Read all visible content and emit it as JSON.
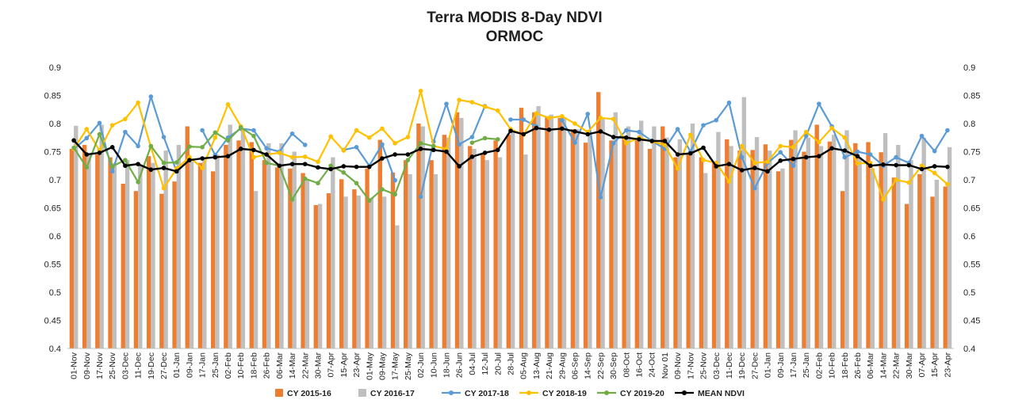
{
  "chart_data": {
    "type": "bar+line",
    "title": "Terra MODIS 8-Day  NDVI",
    "subtitle": "ORMOC",
    "xlabel": "",
    "ylabel": "",
    "ylim": [
      0.4,
      0.9
    ],
    "y_ticks": [
      "0.4",
      "0.45",
      "0.5",
      "0.55",
      "0.6",
      "0.65",
      "0.7",
      "0.75",
      "0.8",
      "0.85",
      "0.9"
    ],
    "grid": false,
    "legend_position": "bottom",
    "categories": [
      "01-Nov",
      "09-Nov",
      "17-Nov",
      "25-Nov",
      "03-Dec",
      "11-Dec",
      "19-Dec",
      "27-Dec",
      "01-Jan",
      "09-Jan",
      "17-Jan",
      "25-Jan",
      "02-Feb",
      "10-Feb",
      "18-Feb",
      "26-Feb",
      "06-Mar",
      "14-Mar",
      "22-Mar",
      "30-Mar",
      "07-Apr",
      "15-Apr",
      "23-Apr",
      "01-May",
      "09-May",
      "17-May",
      "25-May",
      "02-Jun",
      "10-Jun",
      "18-Jun",
      "26-Jun",
      "04-Jul",
      "12-Jul",
      "20-Jul",
      "28-Jul",
      "05-Aug",
      "13-Aug",
      "21-Aug",
      "29-Aug",
      "06-Sep",
      "14-Sep",
      "22-Sep",
      "30-Sep",
      "08-Oct",
      "16-Oct",
      "24-Oct",
      "Nov 01",
      "09-Nov",
      "17-Nov",
      "25-Nov",
      "03-Dec",
      "11-Dec",
      "19-Dec",
      "27-Dec",
      "01-Jan",
      "09-Jan",
      "17-Jan",
      "25-Jan",
      "02-Feb",
      "10-Feb",
      "18-Feb",
      "26-Feb",
      "06-Mar",
      "14-Mar",
      "22-Mar",
      "30-Mar",
      "07-Apr",
      "15-Apr",
      "23-Apr"
    ],
    "bar_series": [
      {
        "name": "CY 2015-16",
        "color": "#ED7D31",
        "values": [
          0.755,
          0.762,
          0.745,
          0.74,
          0.693,
          0.68,
          0.742,
          0.675,
          0.697,
          0.795,
          0.73,
          0.715,
          0.762,
          0.77,
          0.767,
          0.735,
          0.722,
          0.72,
          0.712,
          0.655,
          0.676,
          0.701,
          0.683,
          0.72,
          0.771,
          0.713,
          0.735,
          0.8,
          0.735,
          0.78,
          0.82,
          0.76,
          0.745,
          0.77,
          0.78,
          0.828,
          0.82,
          0.812,
          0.81,
          0.79,
          0.766,
          0.856,
          0.77,
          0.778,
          0.77,
          0.755,
          0.795,
          0.74,
          0.745,
          0.74,
          0.73,
          0.772,
          0.752,
          0.753,
          0.763,
          0.715,
          0.771,
          0.75,
          0.798,
          0.768,
          0.68,
          0.765,
          0.767,
          0.749,
          0.704,
          0.657,
          0.71,
          0.67,
          0.688
        ]
      },
      {
        "name": "CY 2016-17",
        "color": "#BFBFBF",
        "values": [
          0.796,
          0.745,
          0.798,
          0.73,
          0.735,
          0.725,
          0.73,
          0.752,
          0.762,
          0.733,
          0.738,
          0.745,
          0.798,
          0.79,
          0.68,
          0.765,
          0.765,
          0.75,
          0.7,
          0.657,
          0.74,
          0.67,
          0.672,
          0.668,
          0.67,
          0.619,
          0.71,
          0.795,
          0.71,
          0.775,
          0.81,
          0.755,
          0.735,
          0.74,
          0.785,
          0.745,
          0.831,
          0.816,
          0.811,
          0.79,
          0.78,
          0.81,
          0.82,
          0.795,
          0.805,
          0.795,
          0.775,
          0.772,
          0.8,
          0.712,
          0.785,
          0.76,
          0.847,
          0.776,
          0.752,
          0.72,
          0.788,
          0.775,
          0.76,
          0.78,
          0.788,
          0.74,
          0.72,
          0.783,
          0.762,
          0.735,
          0.775,
          0.7,
          0.758
        ]
      }
    ],
    "line_series": [
      {
        "name": "CY 2017-18",
        "color": "#5B9BD5",
        "values": [
          0.755,
          0.774,
          0.801,
          0.715,
          0.785,
          0.76,
          0.848,
          0.776,
          0.715,
          null,
          0.788,
          0.744,
          0.775,
          0.791,
          0.788,
          0.756,
          0.75,
          0.782,
          0.762,
          null,
          null,
          0.753,
          0.758,
          0.725,
          0.763,
          0.699,
          null,
          0.67,
          0.768,
          0.835,
          0.763,
          0.776,
          0.831,
          null,
          0.807,
          0.807,
          0.795,
          null,
          0.806,
          0.766,
          0.817,
          0.669,
          0.765,
          0.788,
          0.785,
          0.769,
          0.755,
          0.79,
          0.75,
          0.797,
          0.806,
          0.837,
          0.74,
          0.685,
          0.73,
          0.749,
          0.725,
          0.778,
          0.835,
          0.795,
          0.74,
          0.75,
          0.745,
          0.725,
          0.74,
          0.73,
          0.778,
          0.751,
          0.788
        ]
      },
      {
        "name": "CY 2018-19",
        "color": "#FFC000",
        "values": [
          0.755,
          0.79,
          0.752,
          0.797,
          0.808,
          0.837,
          0.758,
          0.685,
          0.72,
          0.74,
          0.721,
          0.775,
          0.834,
          0.795,
          0.74,
          0.745,
          0.748,
          0.74,
          0.741,
          0.732,
          0.777,
          0.752,
          0.788,
          0.775,
          0.791,
          0.765,
          0.776,
          0.858,
          0.76,
          0.755,
          0.842,
          0.838,
          0.83,
          0.823,
          0.79,
          0.78,
          0.818,
          0.81,
          0.813,
          0.8,
          0.785,
          0.81,
          0.808,
          0.765,
          0.775,
          0.768,
          0.762,
          0.72,
          0.78,
          0.735,
          0.73,
          0.697,
          0.76,
          0.73,
          0.732,
          0.76,
          0.758,
          0.785,
          0.767,
          0.792,
          0.775,
          0.729,
          0.73,
          0.665,
          0.7,
          0.695,
          0.725,
          0.712,
          0.692
        ]
      },
      {
        "name": "CY 2019-20",
        "color": "#70AD47",
        "values": [
          0.757,
          0.722,
          0.781,
          0.724,
          0.735,
          0.696,
          0.76,
          0.73,
          0.731,
          0.759,
          0.758,
          0.784,
          0.77,
          0.793,
          0.778,
          0.73,
          0.725,
          0.665,
          0.702,
          0.694,
          0.725,
          0.713,
          0.694,
          0.663,
          0.683,
          0.674,
          0.735,
          0.765,
          0.76,
          null,
          null,
          0.766,
          0.774,
          0.772,
          null,
          null,
          null,
          null,
          null,
          null,
          null,
          null,
          null,
          null,
          null,
          null,
          null,
          null,
          null,
          null,
          null,
          null,
          null,
          null,
          null,
          null,
          null,
          null,
          null,
          null,
          null,
          null,
          null,
          null,
          null,
          null,
          null,
          null,
          null
        ]
      },
      {
        "name": "MEAN NDVI",
        "color": "#000000",
        "values": [
          0.77,
          0.745,
          0.748,
          0.758,
          0.725,
          0.728,
          0.718,
          0.721,
          0.715,
          0.735,
          0.738,
          0.74,
          0.742,
          0.755,
          0.753,
          0.745,
          0.725,
          0.728,
          0.728,
          0.722,
          0.719,
          0.724,
          0.723,
          0.723,
          0.738,
          0.745,
          0.745,
          0.755,
          0.753,
          0.75,
          0.724,
          0.741,
          0.748,
          0.753,
          0.787,
          0.781,
          0.792,
          0.789,
          0.791,
          0.786,
          0.781,
          0.786,
          0.776,
          0.775,
          0.772,
          0.769,
          0.769,
          0.745,
          0.747,
          0.757,
          0.724,
          0.728,
          0.717,
          0.721,
          0.715,
          0.734,
          0.737,
          0.74,
          0.742,
          0.756,
          0.752,
          0.742,
          0.725,
          0.727,
          0.726,
          0.726,
          0.719,
          0.724,
          0.723
        ]
      }
    ]
  }
}
